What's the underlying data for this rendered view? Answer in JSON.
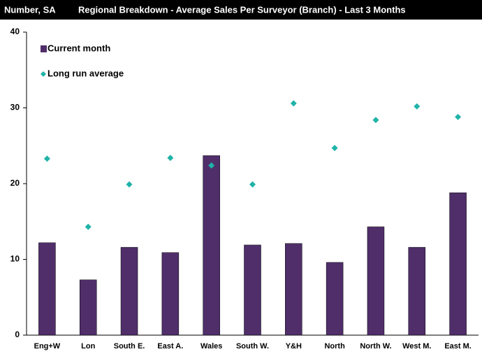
{
  "chart_data": {
    "type": "bar",
    "tag": "Number, SA",
    "title": "Regional Breakdown - Average Sales Per Surveyor (Branch) - Last 3 Months",
    "categories": [
      "Eng+W",
      "Lon",
      "South E.",
      "East A.",
      "Wales",
      "South W.",
      "Y&H",
      "North",
      "North W.",
      "West M.",
      "East M."
    ],
    "series": [
      {
        "name": "Current month",
        "type": "bar",
        "color": "#4f2e6a",
        "values": [
          12.2,
          7.3,
          11.6,
          10.9,
          23.7,
          11.9,
          12.1,
          9.6,
          14.3,
          11.6,
          18.8
        ]
      },
      {
        "name": "Long run average",
        "type": "scatter",
        "color": "#1fb3a8",
        "values": [
          23.3,
          14.3,
          19.9,
          23.4,
          22.4,
          19.9,
          30.6,
          24.7,
          28.4,
          30.2,
          28.8
        ]
      }
    ],
    "ylim": [
      0,
      40
    ],
    "yticks": [
      0,
      10,
      20,
      30,
      40
    ],
    "grid": false,
    "legend": "top-left"
  }
}
